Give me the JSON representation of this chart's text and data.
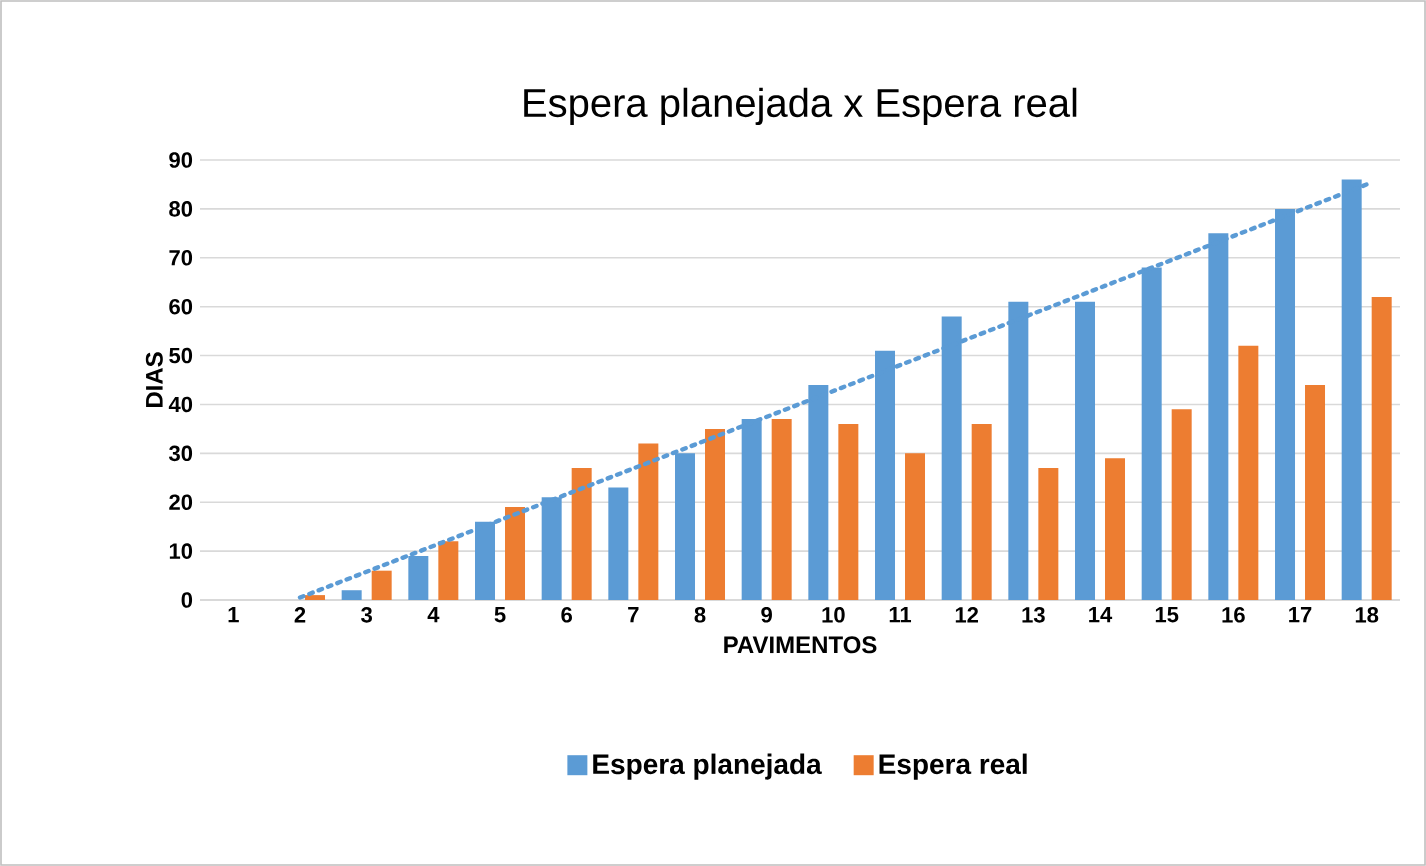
{
  "chart_data": {
    "type": "bar",
    "title": "Espera planejada x Espera real",
    "xlabel": "PAVIMENTOS",
    "ylabel": "DIAS",
    "categories": [
      "1",
      "2",
      "3",
      "4",
      "5",
      "6",
      "7",
      "8",
      "9",
      "10",
      "11",
      "12",
      "13",
      "14",
      "15",
      "16",
      "17",
      "18"
    ],
    "series": [
      {
        "name": "Espera planejada",
        "color": "#5b9bd5",
        "values": [
          0,
          0,
          2,
          9,
          16,
          21,
          23,
          30,
          37,
          44,
          51,
          58,
          61,
          61,
          68,
          75,
          80,
          86
        ]
      },
      {
        "name": "Espera real",
        "color": "#ed7d31",
        "values": [
          0,
          1,
          6,
          12,
          19,
          27,
          32,
          35,
          37,
          36,
          30,
          36,
          27,
          29,
          39,
          52,
          44,
          62
        ]
      },
      {
        "type": "line",
        "color": "#5b9bd5",
        "line_style": "dotted",
        "x": [
          "2",
          "18"
        ],
        "values": [
          0.5,
          85
        ]
      }
    ],
    "ylim": [
      0,
      90
    ],
    "yticks": [
      0,
      10,
      20,
      30,
      40,
      50,
      60,
      70,
      80,
      90
    ],
    "grid": "y",
    "legend": "bottom"
  }
}
